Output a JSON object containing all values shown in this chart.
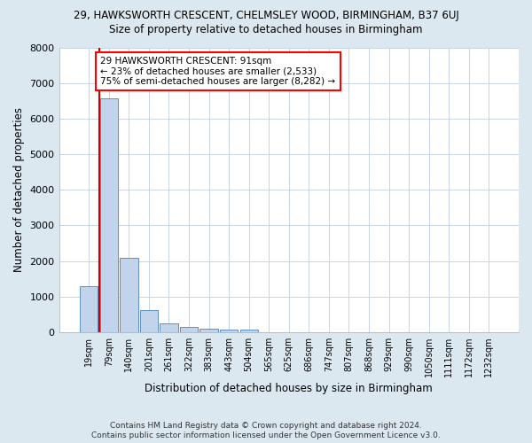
{
  "title1": "29, HAWKSWORTH CRESCENT, CHELMSLEY WOOD, BIRMINGHAM, B37 6UJ",
  "title2": "Size of property relative to detached houses in Birmingham",
  "xlabel": "Distribution of detached houses by size in Birmingham",
  "ylabel": "Number of detached properties",
  "footer1": "Contains HM Land Registry data © Crown copyright and database right 2024.",
  "footer2": "Contains public sector information licensed under the Open Government Licence v3.0.",
  "annotation_line1": "29 HAWKSWORTH CRESCENT: 91sqm",
  "annotation_line2": "← 23% of detached houses are smaller (2,533)",
  "annotation_line3": "75% of semi-detached houses are larger (8,282) →",
  "bar_labels": [
    "19sqm",
    "79sqm",
    "140sqm",
    "201sqm",
    "261sqm",
    "322sqm",
    "383sqm",
    "443sqm",
    "504sqm",
    "565sqm",
    "625sqm",
    "686sqm",
    "747sqm",
    "807sqm",
    "868sqm",
    "929sqm",
    "990sqm",
    "1050sqm",
    "1111sqm",
    "1172sqm",
    "1232sqm"
  ],
  "bar_values": [
    1300,
    6580,
    2100,
    620,
    250,
    130,
    100,
    65,
    65,
    0,
    0,
    0,
    0,
    0,
    0,
    0,
    0,
    0,
    0,
    0,
    0
  ],
  "bar_color": "#c2d4ec",
  "bar_edge_color": "#6090c0",
  "ylim_max": 8000,
  "yticks": [
    0,
    1000,
    2000,
    3000,
    4000,
    5000,
    6000,
    7000,
    8000
  ],
  "grid_color": "#c8d4e4",
  "figure_bg_color": "#dce8f0",
  "plot_bg_color": "#ffffff",
  "red_line_color": "#cc0000",
  "property_line_x": 0.5
}
